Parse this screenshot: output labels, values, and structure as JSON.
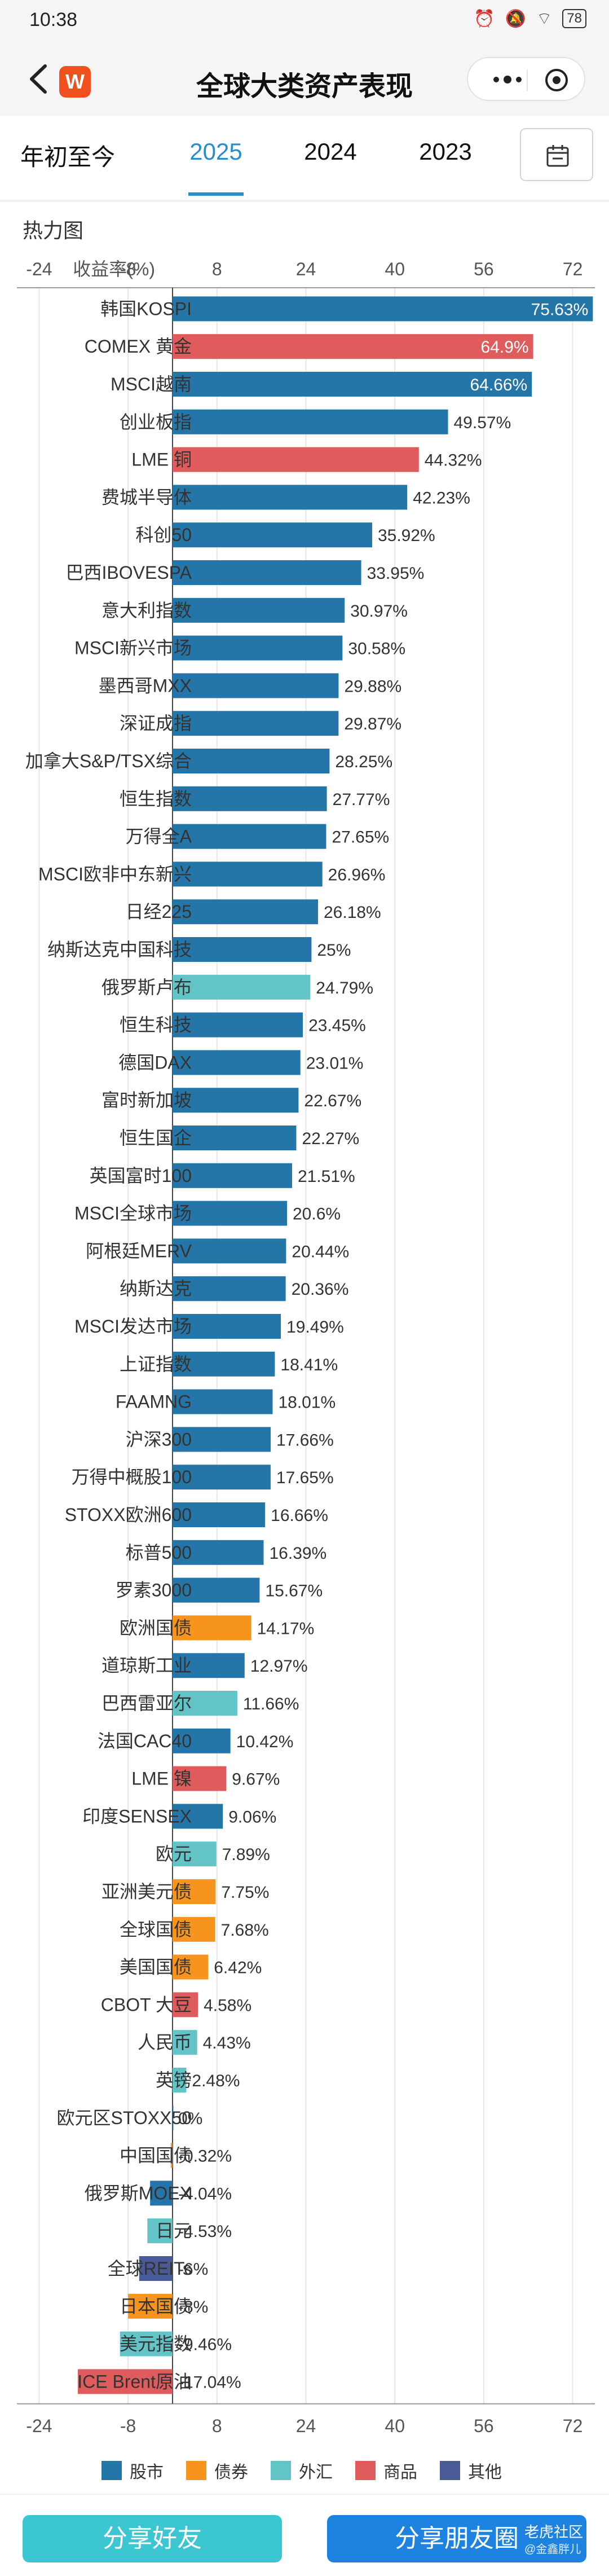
{
  "status_bar": {
    "time": "10:38",
    "battery": "78"
  },
  "nav": {
    "title": "全球大类资产表现",
    "logo": "W"
  },
  "tabs": [
    {
      "label": "年初至今",
      "active": false
    },
    {
      "label": "2025",
      "active": true
    },
    {
      "label": "2024",
      "active": false
    },
    {
      "label": "2023",
      "active": false
    }
  ],
  "section": {
    "title": "热力图"
  },
  "colors": {
    "股市": "#2576a8",
    "债券": "#f7941d",
    "外汇": "#63c4c8",
    "商品": "#e05c5c",
    "其他": "#4a5a96"
  },
  "chart_data": {
    "type": "bar",
    "orientation": "horizontal",
    "xlabel": "收益率(%)",
    "xticks": [
      -24,
      -8,
      8,
      24,
      40,
      56,
      72
    ],
    "xlim": [
      -28,
      76
    ],
    "grid": true,
    "legend_position": "bottom",
    "legend": [
      {
        "name": "股市",
        "color": "#2576a8"
      },
      {
        "name": "债券",
        "color": "#f7941d"
      },
      {
        "name": "外汇",
        "color": "#63c4c8"
      },
      {
        "name": "商品",
        "color": "#e05c5c"
      },
      {
        "name": "其他",
        "color": "#4a5a96"
      }
    ],
    "bars": [
      {
        "label": "韩国KOSPI",
        "value": 75.63,
        "text": "75.63%",
        "cls": "股市"
      },
      {
        "label": "COMEX 黄金",
        "value": 64.9,
        "text": "64.9%",
        "cls": "商品"
      },
      {
        "label": "MSCI越南",
        "value": 64.66,
        "text": "64.66%",
        "cls": "股市"
      },
      {
        "label": "创业板指",
        "value": 49.57,
        "text": "49.57%",
        "cls": "股市"
      },
      {
        "label": "LME 铜",
        "value": 44.32,
        "text": "44.32%",
        "cls": "商品"
      },
      {
        "label": "费城半导体",
        "value": 42.23,
        "text": "42.23%",
        "cls": "股市"
      },
      {
        "label": "科创50",
        "value": 35.92,
        "text": "35.92%",
        "cls": "股市"
      },
      {
        "label": "巴西IBOVESPA",
        "value": 33.95,
        "text": "33.95%",
        "cls": "股市"
      },
      {
        "label": "意大利指数",
        "value": 30.97,
        "text": "30.97%",
        "cls": "股市"
      },
      {
        "label": "MSCI新兴市场",
        "value": 30.58,
        "text": "30.58%",
        "cls": "股市"
      },
      {
        "label": "墨西哥MXX",
        "value": 29.88,
        "text": "29.88%",
        "cls": "股市"
      },
      {
        "label": "深证成指",
        "value": 29.87,
        "text": "29.87%",
        "cls": "股市"
      },
      {
        "label": "加拿大S&P/TSX综合",
        "value": 28.25,
        "text": "28.25%",
        "cls": "股市"
      },
      {
        "label": "恒生指数",
        "value": 27.77,
        "text": "27.77%",
        "cls": "股市"
      },
      {
        "label": "万得全A",
        "value": 27.65,
        "text": "27.65%",
        "cls": "股市"
      },
      {
        "label": "MSCI欧非中东新兴",
        "value": 26.96,
        "text": "26.96%",
        "cls": "股市"
      },
      {
        "label": "日经225",
        "value": 26.18,
        "text": "26.18%",
        "cls": "股市"
      },
      {
        "label": "纳斯达克中国科技",
        "value": 25,
        "text": "25%",
        "cls": "股市"
      },
      {
        "label": "俄罗斯卢布",
        "value": 24.79,
        "text": "24.79%",
        "cls": "外汇"
      },
      {
        "label": "恒生科技",
        "value": 23.45,
        "text": "23.45%",
        "cls": "股市"
      },
      {
        "label": "德国DAX",
        "value": 23.01,
        "text": "23.01%",
        "cls": "股市"
      },
      {
        "label": "富时新加坡",
        "value": 22.67,
        "text": "22.67%",
        "cls": "股市"
      },
      {
        "label": "恒生国企",
        "value": 22.27,
        "text": "22.27%",
        "cls": "股市"
      },
      {
        "label": "英国富时100",
        "value": 21.51,
        "text": "21.51%",
        "cls": "股市"
      },
      {
        "label": "MSCI全球市场",
        "value": 20.6,
        "text": "20.6%",
        "cls": "股市"
      },
      {
        "label": "阿根廷MERV",
        "value": 20.44,
        "text": "20.44%",
        "cls": "股市"
      },
      {
        "label": "纳斯达克",
        "value": 20.36,
        "text": "20.36%",
        "cls": "股市"
      },
      {
        "label": "MSCI发达市场",
        "value": 19.49,
        "text": "19.49%",
        "cls": "股市"
      },
      {
        "label": "上证指数",
        "value": 18.41,
        "text": "18.41%",
        "cls": "股市"
      },
      {
        "label": "FAAMNG",
        "value": 18.01,
        "text": "18.01%",
        "cls": "股市"
      },
      {
        "label": "沪深300",
        "value": 17.66,
        "text": "17.66%",
        "cls": "股市"
      },
      {
        "label": "万得中概股100",
        "value": 17.65,
        "text": "17.65%",
        "cls": "股市"
      },
      {
        "label": "STOXX欧洲600",
        "value": 16.66,
        "text": "16.66%",
        "cls": "股市"
      },
      {
        "label": "标普500",
        "value": 16.39,
        "text": "16.39%",
        "cls": "股市"
      },
      {
        "label": "罗素3000",
        "value": 15.67,
        "text": "15.67%",
        "cls": "股市"
      },
      {
        "label": "欧洲国债",
        "value": 14.17,
        "text": "14.17%",
        "cls": "债券"
      },
      {
        "label": "道琼斯工业",
        "value": 12.97,
        "text": "12.97%",
        "cls": "股市"
      },
      {
        "label": "巴西雷亚尔",
        "value": 11.66,
        "text": "11.66%",
        "cls": "外汇"
      },
      {
        "label": "法国CAC40",
        "value": 10.42,
        "text": "10.42%",
        "cls": "股市"
      },
      {
        "label": "LME 镍",
        "value": 9.67,
        "text": "9.67%",
        "cls": "商品"
      },
      {
        "label": "印度SENSEX",
        "value": 9.06,
        "text": "9.06%",
        "cls": "股市"
      },
      {
        "label": "欧元",
        "value": 7.89,
        "text": "7.89%",
        "cls": "外汇"
      },
      {
        "label": "亚洲美元债",
        "value": 7.75,
        "text": "7.75%",
        "cls": "债券"
      },
      {
        "label": "全球国债",
        "value": 7.68,
        "text": "7.68%",
        "cls": "债券"
      },
      {
        "label": "美国国债",
        "value": 6.42,
        "text": "6.42%",
        "cls": "债券"
      },
      {
        "label": "CBOT 大豆",
        "value": 4.58,
        "text": "4.58%",
        "cls": "商品"
      },
      {
        "label": "人民币",
        "value": 4.43,
        "text": "4.43%",
        "cls": "外汇"
      },
      {
        "label": "英镑",
        "value": 2.48,
        "text": "2.48%",
        "cls": "外汇"
      },
      {
        "label": "欧元区STOXX50",
        "value": 0,
        "text": "0%",
        "cls": "股市"
      },
      {
        "label": "中国国债",
        "value": -0.32,
        "text": "-0.32%",
        "cls": "债券"
      },
      {
        "label": "俄罗斯MOEX",
        "value": -4.04,
        "text": "-4.04%",
        "cls": "股市"
      },
      {
        "label": "日元",
        "value": -4.53,
        "text": "-4.53%",
        "cls": "外汇"
      },
      {
        "label": "全球REITs",
        "value": -6,
        "text": "-6%",
        "cls": "其他"
      },
      {
        "label": "日本国债",
        "value": -8,
        "text": "-8%",
        "cls": "债券"
      },
      {
        "label": "美元指数",
        "value": -9.46,
        "text": "-9.46%",
        "cls": "外汇"
      },
      {
        "label": "ICE Brent原油",
        "value": -17.04,
        "text": "-17.04%",
        "cls": "商品"
      }
    ]
  },
  "footer": {
    "share_friend": "分享好友",
    "share_moments": "分享朋友圈",
    "watermark": "老虎社区",
    "watermark_sub": "@金鑫胖儿"
  }
}
